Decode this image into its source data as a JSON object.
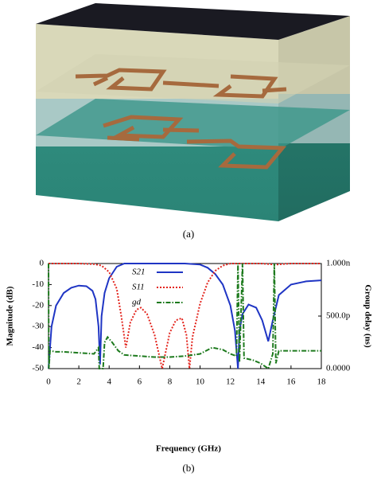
{
  "caption_a": "(a)",
  "chart_data": {
    "type": "line",
    "caption": "(b)",
    "x_label": "Frequency (GHz)",
    "y_label": "Magnitude (dB)",
    "y2_label": "Group delay (ns)",
    "xlim": [
      0,
      18
    ],
    "xticks": [
      0,
      2,
      4,
      6,
      8,
      10,
      12,
      14,
      16,
      18
    ],
    "ylim": [
      -50,
      0
    ],
    "yticks": [
      0,
      -10,
      -20,
      -30,
      -40,
      -50
    ],
    "y2lim": [
      0,
      1
    ],
    "y2ticks": [
      {
        "value": 1,
        "label": "1.000n"
      },
      {
        "value": 0.5,
        "label": "500.0p"
      },
      {
        "value": 0,
        "label": "0.0000"
      }
    ],
    "legend": "upper center",
    "series": [
      {
        "name": "S21",
        "color": "#1f35c4",
        "style": "solid",
        "x": [
          0,
          0.2,
          0.5,
          1,
          1.5,
          2,
          2.5,
          2.9,
          3.1,
          3.3,
          3.4,
          3.5,
          3.7,
          4,
          4.5,
          5,
          6,
          7,
          8,
          9,
          10,
          10.5,
          11,
          11.5,
          12,
          12.3,
          12.5,
          12.6,
          12.8,
          13.2,
          13.7,
          14.1,
          14.5,
          14.8,
          15.2,
          16,
          17,
          18
        ],
        "values": [
          -50,
          -30,
          -20,
          -14,
          -11.5,
          -10.5,
          -10.8,
          -13,
          -17,
          -30,
          -48,
          -25,
          -14,
          -7,
          -1.5,
          0,
          0,
          0,
          0,
          0,
          -0.5,
          -2,
          -5,
          -10,
          -20,
          -32,
          -50,
          -32,
          -24,
          -19.5,
          -21,
          -27,
          -37,
          -27,
          -15,
          -10,
          -8.5,
          -8
        ]
      },
      {
        "name": "S11",
        "color": "#e3241d",
        "style": "dotted",
        "x": [
          0,
          1,
          2,
          3,
          3.5,
          4,
          4.5,
          4.8,
          5.1,
          5.4,
          5.8,
          6.1,
          6.5,
          7,
          7.5,
          8,
          8.4,
          8.8,
          9.1,
          9.3,
          9.5,
          10,
          10.5,
          11,
          11.5,
          12,
          14,
          15,
          16,
          18
        ],
        "values": [
          0,
          0,
          0,
          -0.3,
          -1,
          -4,
          -12,
          -25,
          -40,
          -28,
          -22,
          -21,
          -24,
          -34,
          -50,
          -33,
          -27,
          -26,
          -34,
          -50,
          -35,
          -19,
          -9,
          -3.5,
          -1,
          0,
          0,
          -0.5,
          0,
          0
        ]
      },
      {
        "name": "gd",
        "color": "#1d7a1d",
        "style": "dashdot",
        "axis": "y2",
        "x": [
          0,
          0.02,
          0.1,
          0.5,
          1,
          2,
          3,
          3.3,
          3.35,
          3.6,
          3.7,
          3.9,
          4.2,
          4.6,
          5,
          6,
          7,
          8,
          9,
          10,
          10.8,
          11.5,
          12,
          12.4,
          12.5,
          12.6,
          12.8,
          12.9,
          13.5,
          14,
          14.5,
          14.8,
          14.9,
          15.0,
          15.2,
          16,
          18
        ],
        "values": [
          1,
          0,
          0.17,
          0.16,
          0.16,
          0.15,
          0.14,
          0.2,
          0,
          0,
          0.25,
          0.3,
          0.25,
          0.17,
          0.13,
          0.12,
          0.11,
          0.11,
          0.12,
          0.14,
          0.2,
          0.18,
          0.14,
          0.12,
          1,
          0.06,
          1,
          0.1,
          0.08,
          0.05,
          0,
          0.14,
          1,
          0.05,
          0.17,
          0.17,
          0.17
        ]
      }
    ]
  }
}
